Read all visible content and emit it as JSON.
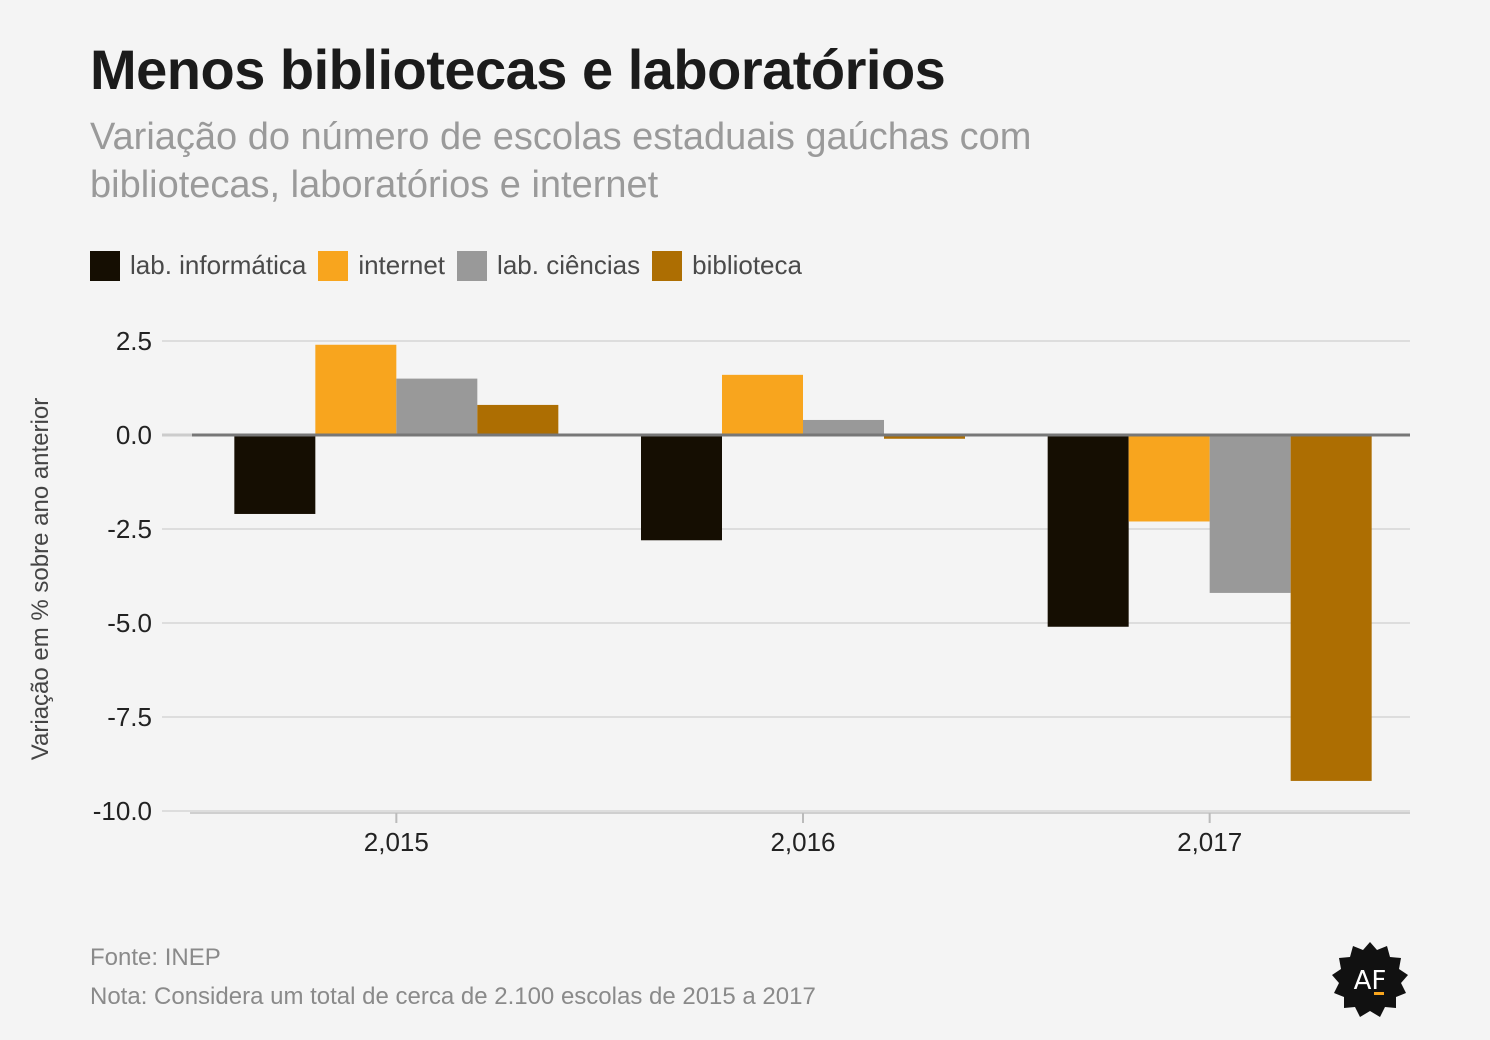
{
  "header": {
    "title": "Menos bibliotecas e laboratórios",
    "subtitle": "Variação do número de escolas estaduais gaúchas com bibliotecas, laboratórios e internet"
  },
  "footer": {
    "source": "Fonte: INEP",
    "note": "Nota: Considera um total de cerca de 2.100 escolas de 2015 a 2017"
  },
  "logo": {
    "icon": "af-badge-icon",
    "text": "AF"
  },
  "chart_data": {
    "type": "bar",
    "title": "Menos bibliotecas e laboratórios",
    "subtitle": "Variação do número de escolas estaduais gaúchas com bibliotecas, laboratórios e internet",
    "xlabel": "",
    "ylabel": "Variação em % sobre ano anterior",
    "categories": [
      "2,015",
      "2,016",
      "2,017"
    ],
    "ylim": [
      -10,
      2.5
    ],
    "yticks": [
      2.5,
      0.0,
      -2.5,
      -5.0,
      -7.5,
      -10.0
    ],
    "ytick_labels": [
      "2.5",
      "0.0",
      "-2.5",
      "-5.0",
      "-7.5",
      "-10.0"
    ],
    "grid": true,
    "legend_position": "top-left",
    "series": [
      {
        "name": "lab. informática",
        "color": "#150e02",
        "values": [
          -2.1,
          -2.8,
          -5.1
        ]
      },
      {
        "name": "internet",
        "color": "#f8a51e",
        "values": [
          2.4,
          1.6,
          -2.3
        ]
      },
      {
        "name": "lab. ciências",
        "color": "#999999",
        "values": [
          1.5,
          0.4,
          -4.2
        ]
      },
      {
        "name": "biblioteca",
        "color": "#ad6e02",
        "values": [
          0.8,
          -0.1,
          -9.2
        ]
      }
    ]
  }
}
